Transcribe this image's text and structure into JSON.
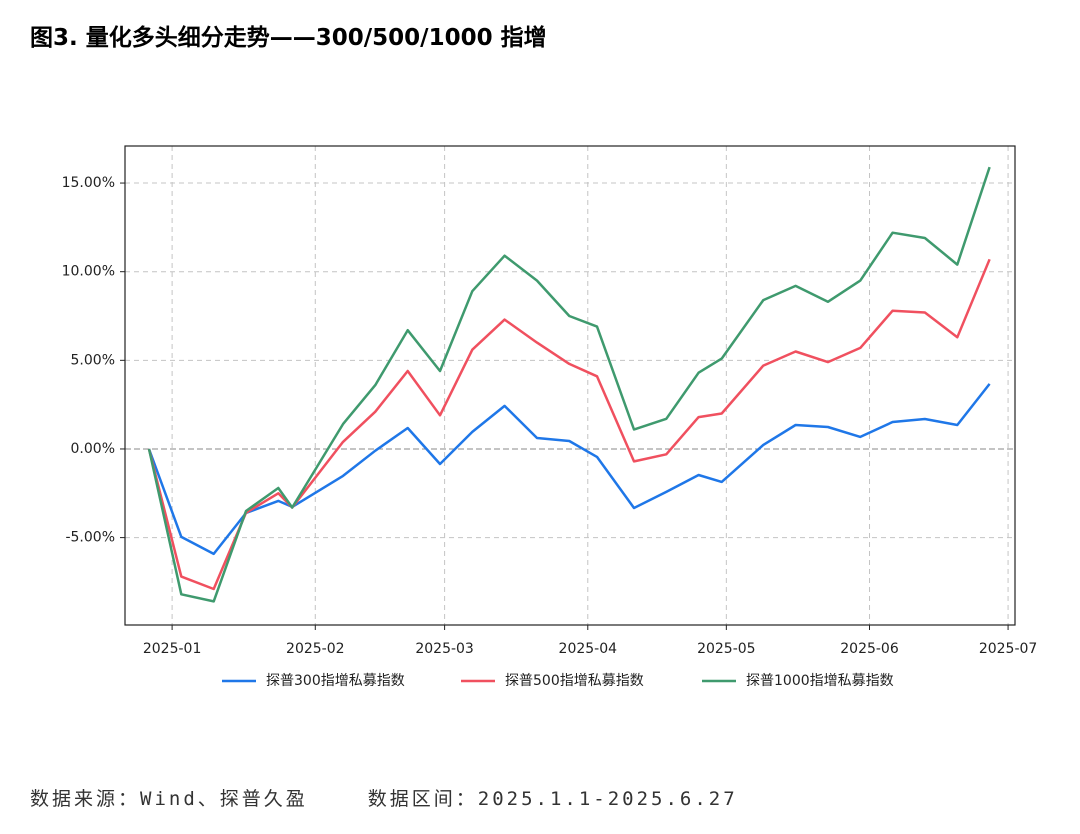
{
  "chart_data": {
    "type": "line",
    "title": "图3. 量化多头细分走势——300/500/1000 指增",
    "source": "数据来源：Wind、探普久盈",
    "period": "数据区间：2025.1.1-2025.6.27",
    "x": [
      -5,
      2,
      9,
      16,
      23,
      26,
      37,
      44,
      51,
      58,
      65,
      72,
      79,
      86,
      92,
      100,
      107,
      114,
      119,
      128,
      135,
      142,
      149,
      156,
      163,
      170,
      177
    ],
    "xlim": [
      -10.2,
      182.5
    ],
    "xticks": [
      {
        "value": 0,
        "label": "2025-01"
      },
      {
        "value": 31,
        "label": "2025-02"
      },
      {
        "value": 59,
        "label": "2025-03"
      },
      {
        "value": 90,
        "label": "2025-04"
      },
      {
        "value": 120,
        "label": "2025-05"
      },
      {
        "value": 151,
        "label": "2025-06"
      },
      {
        "value": 181,
        "label": "2025-07"
      }
    ],
    "ylim": [
      -9.93,
      17.09
    ],
    "yticks": [
      {
        "value": -5,
        "label": "-5.00%"
      },
      {
        "value": 0,
        "label": "0.00%"
      },
      {
        "value": 5,
        "label": "5.00%"
      },
      {
        "value": 10,
        "label": "10.00%"
      },
      {
        "value": 15,
        "label": "15.00%"
      }
    ],
    "grid": true,
    "hline": 0,
    "legend": "bottom",
    "series": [
      {
        "name": "探普300指增私募指数",
        "color": "#1f77e8",
        "values": [
          0,
          -4.96,
          -5.92,
          -3.61,
          -2.93,
          -3.27,
          -1.52,
          -0.1,
          1.18,
          -0.85,
          0.96,
          2.43,
          0.62,
          0.45,
          -0.45,
          -3.33,
          -2.42,
          -1.47,
          -1.86,
          0.23,
          1.35,
          1.24,
          0.68,
          1.52,
          1.69,
          1.35,
          3.67
        ]
      },
      {
        "name": "探普500指增私募指数",
        "color": "#f0505f",
        "values": [
          0,
          -7.2,
          -7.9,
          -3.6,
          -2.5,
          -3.3,
          0.4,
          2.1,
          4.4,
          1.9,
          5.6,
          7.3,
          6.0,
          4.8,
          4.1,
          -0.7,
          -0.3,
          1.8,
          2.0,
          4.7,
          5.5,
          4.9,
          5.7,
          7.8,
          7.7,
          6.3,
          10.7
        ]
      },
      {
        "name": "探普1000指增私募指数",
        "color": "#3f9a6e",
        "values": [
          0,
          -8.2,
          -8.6,
          -3.5,
          -2.2,
          -3.3,
          1.4,
          3.6,
          6.7,
          4.4,
          8.9,
          10.9,
          9.5,
          7.5,
          6.9,
          1.1,
          1.7,
          4.3,
          5.1,
          8.4,
          9.2,
          8.3,
          9.5,
          12.2,
          11.9,
          10.4,
          15.9
        ]
      }
    ]
  }
}
